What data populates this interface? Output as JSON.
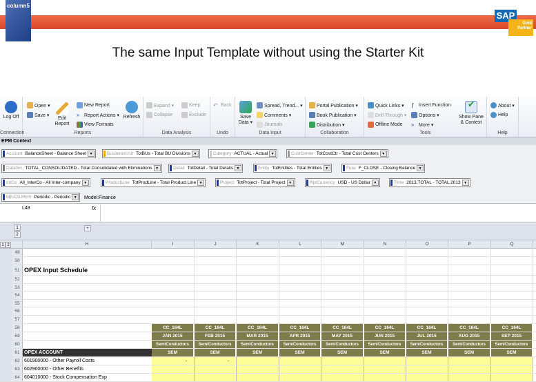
{
  "slide": {
    "brand": "column5",
    "partner_logo": "SAP",
    "partner_badge": "Gold Partner",
    "title": "The same Input Template without using the Starter Kit"
  },
  "ribbon": {
    "connection": {
      "log_off": "Log Off",
      "label": "Connection"
    },
    "reports": {
      "open": "Open ▾",
      "save": "Save ▾",
      "edit_report": "Edit Report",
      "new_report": "New Report",
      "report_actions": "Report Actions ▾",
      "view_formats": "View Formats",
      "refresh": "Refresh",
      "label": "Reports"
    },
    "data_analysis": {
      "expand": "Expand ▾",
      "collapse": "Collapse",
      "keep": "Keep",
      "exclude": "Exclude",
      "label": "Data Analysis"
    },
    "undo": {
      "back": "Back",
      "label": "Undo"
    },
    "data_input": {
      "save_data": "Save Data ▾",
      "spread": "Spread, Trend... ▾",
      "comments": "Comments ▾",
      "journals": "Journals",
      "label": "Data Input"
    },
    "collaboration": {
      "portal": "Portal Publication ▾",
      "book": "Book Publication ▾",
      "distribution": "Distribution ▾",
      "label": "Collaboration"
    },
    "tools": {
      "quick_links": "Quick Links ▾",
      "drill_through": "Drill Through ▾",
      "offline": "Offline Mode",
      "insert_function": "Insert Function",
      "options": "Options ▾",
      "more": "More ▾",
      "show_pane": "Show Pane & Context",
      "label": "Tools"
    },
    "help": {
      "about": "About ▾",
      "help": "Help",
      "label": "Help"
    }
  },
  "context": {
    "title": "EPM Context",
    "model": "Model:Finance",
    "dims": [
      {
        "k": "Account",
        "v": "BalanceSheet - Balance Sheet",
        "color": "#1f3c88"
      },
      {
        "k": "BusinessUnit",
        "v": "TotBUs - Total BU Divisions",
        "color": "#f0a800"
      },
      {
        "k": "Category",
        "v": "ACTUAL - Actual",
        "color": "#cccccc"
      },
      {
        "k": "CostCenter",
        "v": "TotCostCtr - Total Cost Centers",
        "color": "#999999"
      },
      {
        "k": "DataSrc",
        "v": "TOTAL_CONSOLIDATED - Total Consolidated with Eliminations",
        "color": "#777777"
      },
      {
        "k": "Detail",
        "v": "TotDetail - Total Details",
        "color": "#1f3c88"
      },
      {
        "k": "Entity",
        "v": "TotEntities - Total Entities",
        "color": "#1f3c88"
      },
      {
        "k": "Flow",
        "v": "F_CLOSE - Closing Balance",
        "color": "#1f3c88"
      },
      {
        "k": "IntCo",
        "v": "All_InterCo - All Inter-company",
        "color": "#1f3c88"
      },
      {
        "k": "ProductLine",
        "v": "TotProdLine - Total Product Line",
        "color": "#1f3c88"
      },
      {
        "k": "Project",
        "v": "TotProject - Total Project",
        "color": "#1f3c88"
      },
      {
        "k": "RptCurrency",
        "v": "USD - US Dollar",
        "color": "#1f3c88"
      },
      {
        "k": "Time",
        "v": "2013.TOTAL - TOTAL 2013",
        "color": "#1f3c88"
      },
      {
        "k": "MEASURES",
        "v": "Periodic - Periodic",
        "color": "#1f3c88"
      }
    ]
  },
  "formula": {
    "namebox": "L48",
    "fx": "fx",
    "value": ""
  },
  "outline": {
    "levels": [
      "1",
      "2"
    ],
    "expand": "+"
  },
  "sheet": {
    "columns": [
      "H",
      "I",
      "J",
      "K",
      "L",
      "M",
      "N",
      "O",
      "P",
      "Q"
    ],
    "rows": [
      "49",
      "50",
      "51",
      "52",
      "53",
      "54",
      "55",
      "56",
      "57",
      "58",
      "59",
      "60",
      "61",
      "62",
      "63",
      "64"
    ],
    "schedule_title": "OPEX Input Schedule",
    "cost_center": "CC_164L",
    "months": [
      "JAN 2015",
      "FEB 2015",
      "MAR 2015",
      "APR 2015",
      "MAY 2015",
      "JUN 2015",
      "JUL 2015",
      "AUG 2015",
      "SEP 2015"
    ],
    "product_line": "SemiConductors",
    "sem": "SEM",
    "header_label": "OPEX ACCOUNT",
    "accounts": [
      "601900000 - Other Payroll Costs",
      "602900000 - Other Benefits",
      "604010000 - Stock Compensation Exp"
    ],
    "dash": "-"
  }
}
